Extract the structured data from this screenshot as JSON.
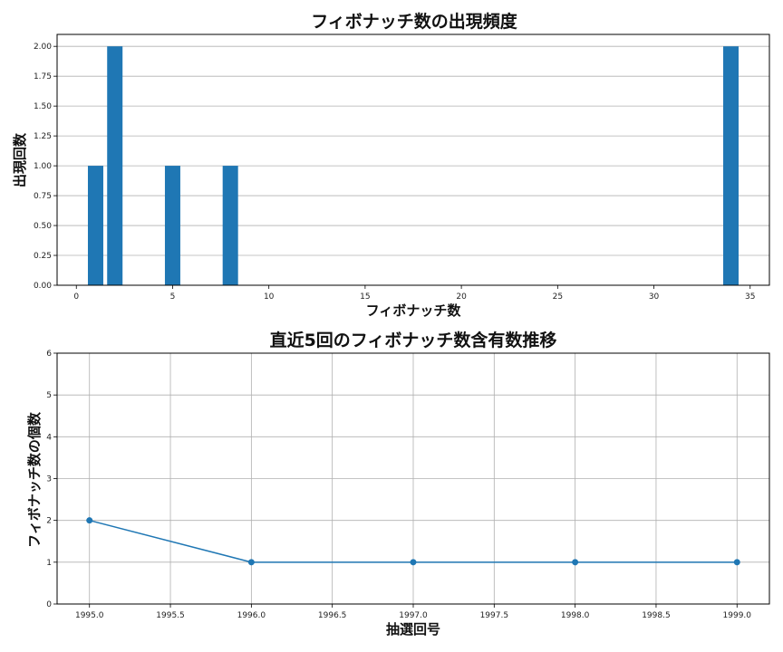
{
  "chart_data": [
    {
      "type": "bar",
      "title": "フィボナッチ数の出現頻度",
      "xlabel": "フィボナッチ数",
      "ylabel": "出現回数",
      "x": [
        1,
        2,
        5,
        8,
        34
      ],
      "values": [
        1,
        2,
        1,
        1,
        2
      ],
      "xlim": [
        -1,
        36
      ],
      "ylim": [
        0,
        2.1
      ],
      "xticks": [
        0,
        5,
        10,
        15,
        20,
        25,
        30,
        35
      ],
      "yticks": [
        0,
        0.25,
        0.5,
        0.75,
        1.0,
        1.25,
        1.5,
        1.75,
        2.0
      ],
      "xtick_labels": [
        "0",
        "5",
        "10",
        "15",
        "20",
        "25",
        "30",
        "35"
      ],
      "ytick_labels": [
        "0.00",
        "0.25",
        "0.50",
        "0.75",
        "1.00",
        "1.25",
        "1.50",
        "1.75",
        "2.00"
      ],
      "grid": "y",
      "color": "#1f77b4"
    },
    {
      "type": "line",
      "title": "直近5回のフィボナッチ数含有数推移",
      "xlabel": "抽選回号",
      "ylabel": "フィボナッチ数の個数",
      "x": [
        1995,
        1996,
        1997,
        1998,
        1999
      ],
      "y": [
        2,
        1,
        1,
        1,
        1
      ],
      "xlim": [
        1994.8,
        1999.2
      ],
      "ylim": [
        0,
        6
      ],
      "xticks": [
        1995.0,
        1995.5,
        1996.0,
        1996.5,
        1997.0,
        1997.5,
        1998.0,
        1998.5,
        1999.0
      ],
      "yticks": [
        0,
        1,
        2,
        3,
        4,
        5,
        6
      ],
      "xtick_labels": [
        "1995.0",
        "1995.5",
        "1996.0",
        "1996.5",
        "1997.0",
        "1997.5",
        "1998.0",
        "1998.5",
        "1999.0"
      ],
      "ytick_labels": [
        "0",
        "1",
        "2",
        "3",
        "4",
        "5",
        "6"
      ],
      "grid": "both",
      "color": "#1f77b4",
      "marker": "circle"
    }
  ]
}
